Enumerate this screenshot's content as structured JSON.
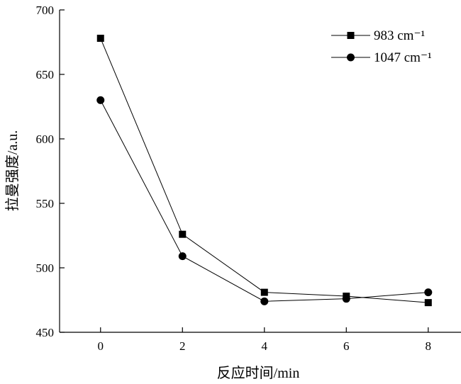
{
  "chart_data": {
    "type": "line",
    "title": "",
    "xlabel": "反应时间/min",
    "ylabel": "拉曼强度/a.u.",
    "x": [
      0,
      2,
      4,
      6,
      8
    ],
    "xticks": [
      0,
      2,
      4,
      6,
      8
    ],
    "yticks": [
      450,
      500,
      550,
      600,
      650,
      700
    ],
    "xlim": [
      -1,
      8.8
    ],
    "ylim": [
      450,
      700
    ],
    "grid": false,
    "legend_position": "top-right",
    "series": [
      {
        "name": "983 cm⁻¹",
        "marker": "square",
        "color": "#000000",
        "values": [
          678,
          526,
          481,
          478,
          473
        ]
      },
      {
        "name": "1047 cm⁻¹",
        "marker": "circle",
        "color": "#000000",
        "values": [
          630,
          509,
          474,
          476,
          481
        ]
      }
    ]
  }
}
